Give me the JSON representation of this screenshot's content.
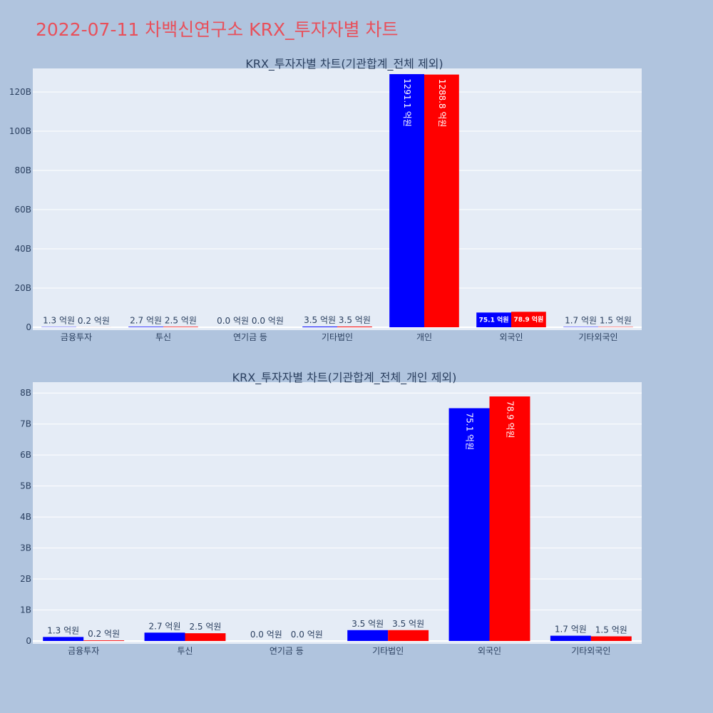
{
  "title": "2022-07-11 차백신연구소 KRX_투자자별 차트",
  "colors": {
    "background": "#b0c4de",
    "plot_bg": "#e5ecf6",
    "series1": "#0000ff",
    "series2": "#ff0000",
    "title": "#e8505b"
  },
  "chart_data": [
    {
      "type": "bar",
      "title": "KRX_투자자별 차트(기관합계_전체 제외)",
      "categories": [
        "금융투자",
        "투신",
        "연기금 등",
        "기타법인",
        "개인",
        "외국인",
        "기타외국인"
      ],
      "series": [
        {
          "values": [
            130000000,
            270000000,
            0,
            350000000,
            129110000000,
            7510000000,
            170000000
          ],
          "labels": [
            "1.3 억원",
            "2.7 억원",
            "0.0 억원",
            "3.5 억원",
            "1291.1 억원",
            "75.1 억원",
            "1.7 억원"
          ]
        },
        {
          "values": [
            20000000,
            250000000,
            0,
            350000000,
            128880000000,
            7890000000,
            150000000
          ],
          "labels": [
            "0.2 억원",
            "2.5 억원",
            "0.0 억원",
            "3.5 억원",
            "1288.8 억원",
            "78.9 억원",
            "1.5 억원"
          ]
        }
      ],
      "yticks": [
        "0",
        "20B",
        "40B",
        "60B",
        "80B",
        "100B",
        "120B"
      ],
      "ylim": [
        0,
        132000000000
      ],
      "grid": true
    },
    {
      "type": "bar",
      "title": "KRX_투자자별 차트(기관합계_전체_개인 제외)",
      "categories": [
        "금융투자",
        "투신",
        "연기금 등",
        "기타법인",
        "외국인",
        "기타외국인"
      ],
      "series": [
        {
          "values": [
            130000000,
            270000000,
            0,
            350000000,
            7510000000,
            170000000
          ],
          "labels": [
            "1.3 억원",
            "2.7 억원",
            "0.0 억원",
            "3.5 억원",
            "75.1 억원",
            "1.7 억원"
          ]
        },
        {
          "values": [
            20000000,
            250000000,
            0,
            350000000,
            7890000000,
            150000000
          ],
          "labels": [
            "0.2 억원",
            "2.5 억원",
            "0.0 억원",
            "3.5 억원",
            "78.9 억원",
            "1.5 억원"
          ]
        }
      ],
      "yticks": [
        "0",
        "1B",
        "2B",
        "3B",
        "4B",
        "5B",
        "6B",
        "7B",
        "8B"
      ],
      "ylim": [
        0,
        8350000000
      ],
      "grid": true
    }
  ]
}
